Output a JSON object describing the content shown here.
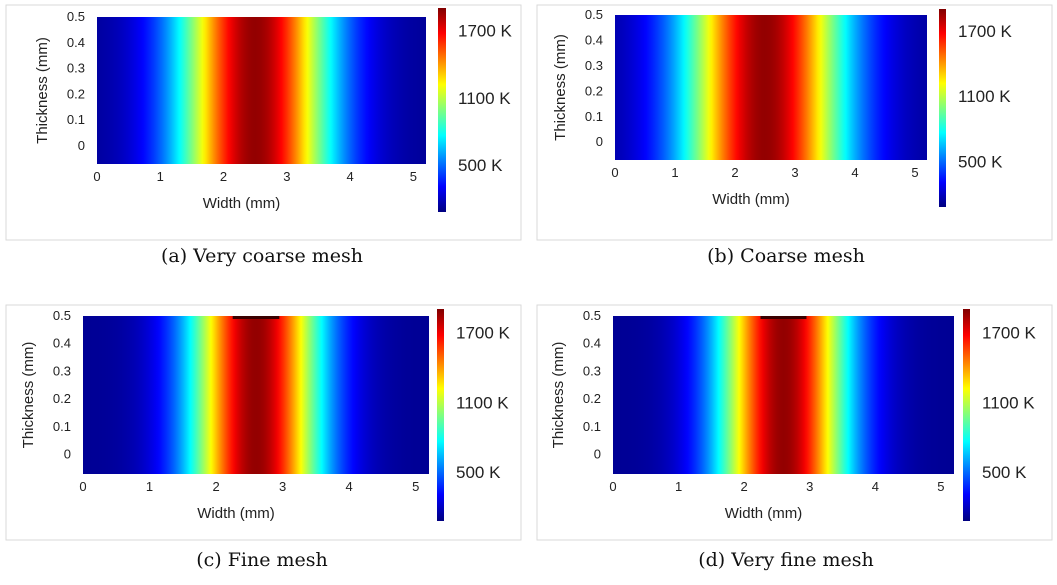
{
  "colorbar": {
    "stops": [
      "#00007f",
      "#0000ff",
      "#007fff",
      "#00ffff",
      "#7fff7f",
      "#ffff00",
      "#ff7f00",
      "#ff0000",
      "#7f0000"
    ]
  },
  "chart_data": [
    {
      "type": "heatmap",
      "caption": "(a) Very coarse mesh",
      "xlabel": "Width (mm)",
      "ylabel": "Thickness (mm)",
      "xlim": [
        0,
        5.2
      ],
      "ylim": [
        -0.07,
        0.5
      ],
      "xticks": [
        "0",
        "1",
        "2",
        "3",
        "4",
        "5"
      ],
      "yticks": [
        "0",
        "0.1",
        "0.2",
        "0.3",
        "0.4",
        "0.5"
      ],
      "colorbar_ticks": [
        "1700 K",
        "1100 K",
        "500 K"
      ],
      "temperature_unit": "K",
      "hot_center_x": 2.5,
      "hot_width": 0.85,
      "peak_temperature": 1800,
      "background_temperature": 300
    },
    {
      "type": "heatmap",
      "caption": "(b) Coarse mesh",
      "xlabel": "Width (mm)",
      "ylabel": "Thickness (mm)",
      "xlim": [
        0,
        5.2
      ],
      "ylim": [
        -0.07,
        0.5
      ],
      "xticks": [
        "0",
        "1",
        "2",
        "3",
        "4",
        "5"
      ],
      "yticks": [
        "0",
        "0.1",
        "0.2",
        "0.3",
        "0.4",
        "0.5"
      ],
      "colorbar_ticks": [
        "1700 K",
        "1100 K",
        "500 K"
      ],
      "temperature_unit": "K",
      "hot_center_x": 2.5,
      "hot_width": 0.95,
      "peak_temperature": 1800,
      "background_temperature": 300
    },
    {
      "type": "heatmap",
      "caption": "(c) Fine mesh",
      "xlabel": "Width (mm)",
      "ylabel": "Thickness (mm)",
      "xlim": [
        0,
        5.2
      ],
      "ylim": [
        -0.07,
        0.5
      ],
      "xticks": [
        "0",
        "1",
        "2",
        "3",
        "4",
        "5"
      ],
      "yticks": [
        "0",
        "0.1",
        "0.2",
        "0.3",
        "0.4",
        "0.5"
      ],
      "colorbar_ticks": [
        "1700 K",
        "1100 K",
        "500 K"
      ],
      "temperature_unit": "K",
      "hot_center_x": 2.6,
      "hot_width": 0.7,
      "peak_temperature": 1800,
      "background_temperature": 300
    },
    {
      "type": "heatmap",
      "caption": "(d) Very fine mesh",
      "xlabel": "Width (mm)",
      "ylabel": "Thickness (mm)",
      "xlim": [
        0,
        5.2
      ],
      "ylim": [
        -0.07,
        0.5
      ],
      "xticks": [
        "0",
        "1",
        "2",
        "3",
        "4",
        "5"
      ],
      "yticks": [
        "0",
        "0.1",
        "0.2",
        "0.3",
        "0.4",
        "0.5"
      ],
      "colorbar_ticks": [
        "1700 K",
        "1100 K",
        "500 K"
      ],
      "temperature_unit": "K",
      "hot_center_x": 2.6,
      "hot_width": 0.7,
      "peak_temperature": 1800,
      "background_temperature": 300
    }
  ]
}
